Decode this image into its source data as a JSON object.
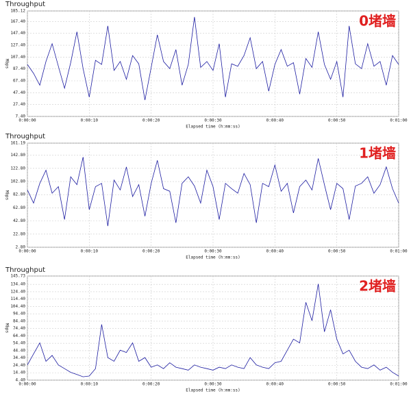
{
  "chart_data": [
    {
      "type": "line",
      "title": "Throughput",
      "annotation": "0堵墙",
      "ylabel": "Mbps",
      "xlabel": "Elapsed time (h:mm:ss)",
      "grid": true,
      "color": "#1a1aa0",
      "xlim": [
        0,
        60
      ],
      "xticks": [
        {
          "value": 0,
          "label": "0:00:00"
        },
        {
          "value": 10,
          "label": "0:00:10"
        },
        {
          "value": 20,
          "label": "0:00:20"
        },
        {
          "value": 30,
          "label": "0:00:30"
        },
        {
          "value": 40,
          "label": "0:00:40"
        },
        {
          "value": 50,
          "label": "0:00:50"
        },
        {
          "value": 60,
          "label": "0:01:00"
        }
      ],
      "ylim": [
        7.4,
        185.12
      ],
      "yticks": [
        {
          "value": 7.4,
          "label": "7.40"
        },
        {
          "value": 27.4,
          "label": "27.40"
        },
        {
          "value": 47.4,
          "label": "47.40"
        },
        {
          "value": 67.4,
          "label": "67.40"
        },
        {
          "value": 87.4,
          "label": "87.40"
        },
        {
          "value": 107.4,
          "label": "107.40"
        },
        {
          "value": 127.4,
          "label": "127.40"
        },
        {
          "value": 147.4,
          "label": "147.40"
        },
        {
          "value": 167.4,
          "label": "167.40"
        },
        {
          "value": 185.12,
          "label": "185.12"
        }
      ],
      "x": [
        0,
        1,
        2,
        3,
        4,
        5,
        6,
        7,
        8,
        9,
        10,
        11,
        12,
        13,
        14,
        15,
        16,
        17,
        18,
        19,
        20,
        21,
        22,
        23,
        24,
        25,
        26,
        27,
        28,
        29,
        30,
        31,
        32,
        33,
        34,
        35,
        36,
        37,
        38,
        39,
        40,
        41,
        42,
        43,
        44,
        45,
        46,
        47,
        48,
        49,
        50,
        51,
        52,
        53,
        54,
        55,
        56,
        57,
        58,
        59,
        60
      ],
      "values": [
        95,
        80,
        60,
        100,
        130,
        92,
        55,
        98,
        150,
        88,
        40,
        102,
        95,
        160,
        85,
        100,
        70,
        110,
        96,
        35,
        90,
        145,
        100,
        88,
        120,
        60,
        95,
        175,
        90,
        100,
        85,
        130,
        40,
        96,
        92,
        110,
        140,
        88,
        100,
        50,
        95,
        120,
        92,
        98,
        45,
        105,
        90,
        150,
        95,
        70,
        100,
        40,
        160,
        96,
        88,
        130,
        92,
        100,
        60,
        110,
        95
      ]
    },
    {
      "type": "line",
      "title": "Throughput",
      "annotation": "1堵墙",
      "ylabel": "Mbps",
      "xlabel": "Elapsed time (h:mm:ss)",
      "grid": true,
      "color": "#1a1aa0",
      "xlim": [
        0,
        60
      ],
      "xticks": [
        {
          "value": 0,
          "label": "0:00:00"
        },
        {
          "value": 10,
          "label": "0:00:10"
        },
        {
          "value": 20,
          "label": "0:00:20"
        },
        {
          "value": 30,
          "label": "0:00:30"
        },
        {
          "value": 40,
          "label": "0:00:40"
        },
        {
          "value": 50,
          "label": "0:00:50"
        },
        {
          "value": 60,
          "label": "0:01:00"
        }
      ],
      "ylim": [
        2.8,
        161.19
      ],
      "yticks": [
        {
          "value": 2.8,
          "label": "2.80"
        },
        {
          "value": 22.8,
          "label": "22.80"
        },
        {
          "value": 42.8,
          "label": "42.80"
        },
        {
          "value": 62.8,
          "label": "62.80"
        },
        {
          "value": 82.8,
          "label": "82.80"
        },
        {
          "value": 102.8,
          "label": "102.80"
        },
        {
          "value": 122.8,
          "label": "122.80"
        },
        {
          "value": 142.8,
          "label": "142.80"
        },
        161.19
      ],
      "x": [
        0,
        1,
        2,
        3,
        4,
        5,
        6,
        7,
        8,
        9,
        10,
        11,
        12,
        13,
        14,
        15,
        16,
        17,
        18,
        19,
        20,
        21,
        22,
        23,
        24,
        25,
        26,
        27,
        28,
        29,
        30,
        31,
        32,
        33,
        34,
        35,
        36,
        37,
        38,
        39,
        40,
        41,
        42,
        43,
        44,
        45,
        46,
        47,
        48,
        49,
        50,
        51,
        52,
        53,
        54,
        55,
        56,
        57,
        58,
        59,
        60
      ],
      "values": [
        90,
        70,
        100,
        120,
        85,
        95,
        45,
        110,
        98,
        140,
        60,
        95,
        100,
        35,
        105,
        90,
        125,
        80,
        98,
        50,
        100,
        135,
        92,
        88,
        40,
        100,
        110,
        96,
        70,
        120,
        95,
        45,
        100,
        92,
        85,
        115,
        98,
        40,
        100,
        95,
        128,
        88,
        100,
        55,
        95,
        105,
        90,
        138,
        98,
        60,
        100,
        92,
        45,
        96,
        100,
        110,
        85,
        98,
        125,
        92,
        70
      ]
    },
    {
      "type": "line",
      "title": "Throughput",
      "annotation": "2堵墙",
      "ylabel": "Mbps",
      "xlabel": "Elapsed time (h:mm:ss)",
      "grid": true,
      "color": "#1a1aa0",
      "xlim": [
        0,
        60
      ],
      "xticks": [
        {
          "value": 0,
          "label": "0:00:00"
        },
        {
          "value": 10,
          "label": "0:00:10"
        },
        {
          "value": 20,
          "label": "0:00:20"
        },
        {
          "value": 30,
          "label": "0:00:30"
        },
        {
          "value": 40,
          "label": "0:00:40"
        },
        {
          "value": 50,
          "label": "0:00:50"
        },
        {
          "value": 60,
          "label": "0:01:00"
        }
      ],
      "ylim": [
        4.4,
        145.73
      ],
      "yticks": [
        {
          "value": 4.4,
          "label": "4.40"
        },
        {
          "value": 14.4,
          "label": "14.40"
        },
        {
          "value": 24.4,
          "label": "24.40"
        },
        {
          "value": 34.4,
          "label": "34.40"
        },
        {
          "value": 44.4,
          "label": "44.40"
        },
        {
          "value": 54.4,
          "label": "54.40"
        },
        {
          "value": 64.4,
          "label": "64.40"
        },
        {
          "value": 74.4,
          "label": "74.40"
        },
        {
          "value": 84.4,
          "label": "84.40"
        },
        {
          "value": 94.4,
          "label": "94.40"
        },
        {
          "value": 104.4,
          "label": "104.40"
        },
        {
          "value": 114.4,
          "label": "114.40"
        },
        {
          "value": 124.4,
          "label": "124.40"
        },
        {
          "value": 134.4,
          "label": "134.40"
        },
        145.73
      ],
      "x": [
        0,
        1,
        2,
        3,
        4,
        5,
        6,
        7,
        8,
        9,
        10,
        11,
        12,
        13,
        14,
        15,
        16,
        17,
        18,
        19,
        20,
        21,
        22,
        23,
        24,
        25,
        26,
        27,
        28,
        29,
        30,
        31,
        32,
        33,
        34,
        35,
        36,
        37,
        38,
        39,
        40,
        41,
        42,
        43,
        44,
        45,
        46,
        47,
        48,
        49,
        50,
        51,
        52,
        53,
        54,
        55,
        56,
        57,
        58,
        59,
        60
      ],
      "values": [
        25,
        40,
        55,
        30,
        38,
        25,
        20,
        15,
        12,
        9,
        10,
        20,
        80,
        35,
        30,
        45,
        42,
        55,
        30,
        35,
        22,
        25,
        20,
        28,
        22,
        20,
        18,
        25,
        22,
        20,
        18,
        22,
        20,
        25,
        22,
        20,
        35,
        25,
        22,
        20,
        28,
        30,
        45,
        60,
        55,
        110,
        85,
        135,
        70,
        100,
        60,
        40,
        45,
        30,
        22,
        20,
        25,
        18,
        22,
        15,
        10
      ]
    }
  ]
}
